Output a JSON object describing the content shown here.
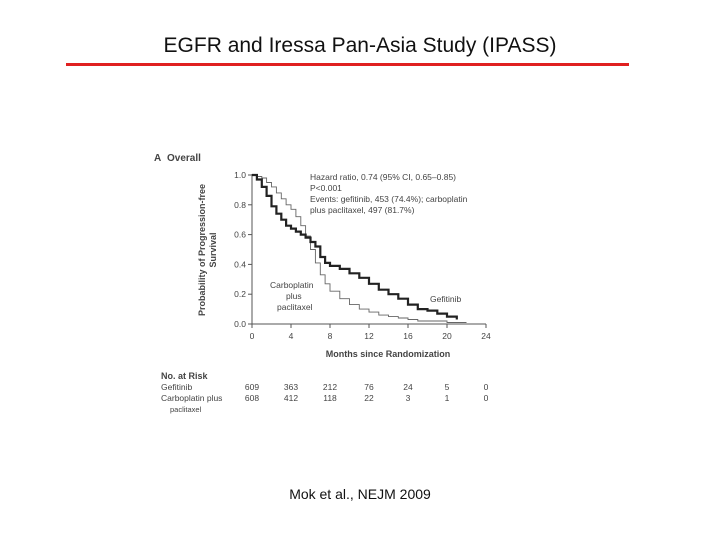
{
  "slide": {
    "title": "EGFR and Iressa Pan-Asia Study (IPASS)",
    "citation": "Mok et al., NEJM 2009",
    "accent_color": "#e02020"
  },
  "chart_data": {
    "type": "line",
    "panel_label": "A",
    "title": "Overall",
    "xlabel": "Months since Randomization",
    "ylabel": "Probability of Progression-free Survival",
    "xlim": [
      0,
      24
    ],
    "ylim": [
      0,
      1.0
    ],
    "x_ticks": [
      "0",
      "4",
      "8",
      "12",
      "16",
      "20",
      "24"
    ],
    "y_ticks": [
      "0.0",
      "0.2",
      "0.4",
      "0.6",
      "0.8",
      "1.0"
    ],
    "grid": false,
    "annotations": [
      "Hazard ratio, 0.74 (95% CI, 0.65–0.85)",
      "P<0.001",
      "Events: gefitinib, 453 (74.4%); carboplatin",
      "plus paclitaxel, 497 (81.7%)"
    ],
    "series": [
      {
        "name": "Gefitinib",
        "style": "thick",
        "x": [
          0,
          0.5,
          1,
          1.5,
          2,
          2.5,
          3,
          3.5,
          4,
          4.5,
          5,
          5.5,
          6,
          6.5,
          7,
          7.5,
          8,
          9,
          10,
          11,
          12,
          13,
          14,
          15,
          16,
          17,
          18,
          19,
          20,
          21
        ],
        "y": [
          1.0,
          0.97,
          0.92,
          0.86,
          0.79,
          0.74,
          0.7,
          0.66,
          0.64,
          0.62,
          0.6,
          0.58,
          0.55,
          0.52,
          0.45,
          0.41,
          0.39,
          0.37,
          0.34,
          0.31,
          0.27,
          0.23,
          0.2,
          0.17,
          0.13,
          0.1,
          0.09,
          0.07,
          0.05,
          0.03
        ]
      },
      {
        "name": "Carboplatin plus paclitaxel",
        "label_lines": [
          "Carboplatin",
          "plus",
          "paclitaxel"
        ],
        "style": "thin",
        "x": [
          0,
          0.5,
          1,
          1.5,
          2,
          2.5,
          3,
          3.5,
          4,
          4.5,
          5,
          5.5,
          6,
          6.5,
          7,
          7.5,
          8,
          9,
          10,
          11,
          12,
          13,
          14,
          15,
          16,
          17,
          18,
          20,
          22
        ],
        "y": [
          1.0,
          0.99,
          0.98,
          0.95,
          0.92,
          0.88,
          0.84,
          0.8,
          0.77,
          0.72,
          0.66,
          0.59,
          0.5,
          0.41,
          0.33,
          0.27,
          0.22,
          0.17,
          0.13,
          0.1,
          0.08,
          0.06,
          0.05,
          0.04,
          0.03,
          0.02,
          0.02,
          0.01,
          0.01
        ]
      }
    ],
    "at_risk": {
      "header": "No. at Risk",
      "columns": [
        "0",
        "4",
        "8",
        "12",
        "16",
        "20",
        "24"
      ],
      "rows": [
        {
          "label": "Gefitinib",
          "values": [
            "609",
            "363",
            "212",
            "76",
            "24",
            "5",
            "0"
          ]
        },
        {
          "label": "Carboplatin plus",
          "label2": "paclitaxel",
          "values": [
            "608",
            "412",
            "118",
            "22",
            "3",
            "1",
            "0"
          ]
        }
      ]
    }
  }
}
